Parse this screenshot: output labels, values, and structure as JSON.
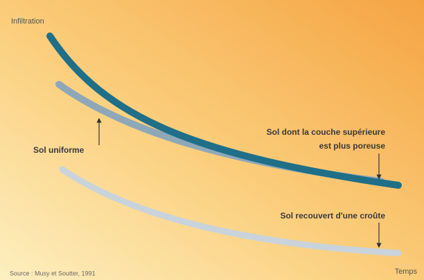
{
  "axes": {
    "y_label": "Infiltration",
    "x_label": "Temps"
  },
  "curves": [
    {
      "label": "Sol uniforme"
    },
    {
      "label": [
        "Sol dont la couche supérieure",
        "est plus poreuse"
      ]
    },
    {
      "label": "Sol recouvert d'une croûte"
    }
  ],
  "source": "Source : Musy et Soutter, 1991"
}
